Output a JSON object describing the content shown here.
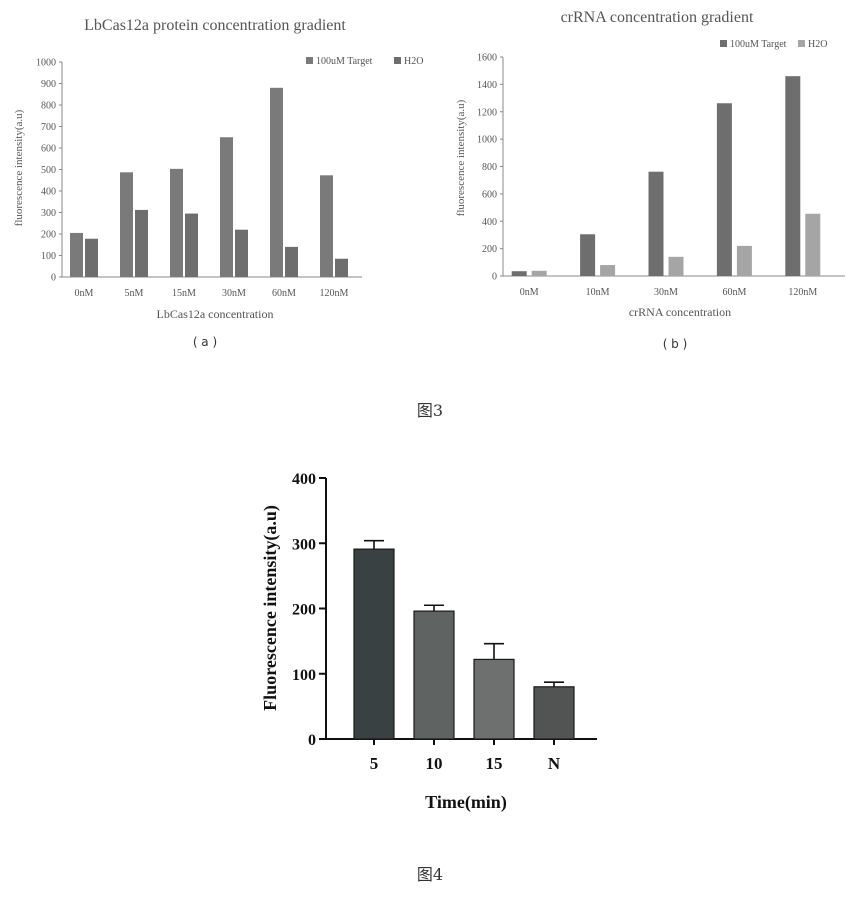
{
  "figure3": {
    "caption": "图3",
    "panel_a_label": "( a )",
    "panel_b_label": "( b )"
  },
  "figure4": {
    "caption": "图4"
  },
  "colors": {
    "dark_gray": "#6e6e6e",
    "mid_gray": "#7a7a7a",
    "light_gray": "#a5a5a5",
    "bar_5": "#3a4142",
    "bar_10": "#5f6362",
    "bar_15": "#6e706f",
    "bar_N": "#525454"
  },
  "chart_data": [
    {
      "type": "bar",
      "title": "LbCas12a  protein  concentration  gradient",
      "xlabel": "LbCas12a  concentration",
      "ylabel": "fluorescence  intensity(a.u)",
      "categories": [
        "0nM",
        "5nM",
        "15nM",
        "30nM",
        "60nM",
        "120nM"
      ],
      "ylim": [
        0,
        1000
      ],
      "yticks": [
        0,
        100,
        200,
        300,
        400,
        500,
        600,
        700,
        800,
        900,
        1000
      ],
      "legend_position": "top-right",
      "series": [
        {
          "name": "100uM Target",
          "values": [
            205,
            487,
            503,
            650,
            880,
            473
          ]
        },
        {
          "name": "H2O",
          "values": [
            178,
            312,
            295,
            220,
            140,
            85
          ]
        }
      ]
    },
    {
      "type": "bar",
      "title": "crRNA  concentration  gradient",
      "xlabel": "crRNA  concentration",
      "ylabel": "fluorescence  intensity(a.u)",
      "categories": [
        "0nM",
        "10nM",
        "30nM",
        "60nM",
        "120nM"
      ],
      "ylim": [
        0,
        1600
      ],
      "yticks": [
        0,
        200,
        400,
        600,
        800,
        1000,
        1200,
        1400,
        1600
      ],
      "legend_position": "top-right",
      "series": [
        {
          "name": "100uM Target",
          "values": [
            35,
            305,
            762,
            1262,
            1460
          ]
        },
        {
          "name": "H2O",
          "values": [
            38,
            80,
            140,
            220,
            455
          ]
        }
      ]
    },
    {
      "type": "bar",
      "title": "",
      "xlabel": "Time(min)",
      "ylabel": "Fluorescence intensity(a.u)",
      "categories": [
        "5",
        "10",
        "15",
        "N"
      ],
      "values": [
        291,
        196,
        122,
        80
      ],
      "error": [
        13,
        9,
        24,
        7
      ],
      "ylim": [
        0,
        400
      ],
      "yticks": [
        0,
        100,
        200,
        300,
        400
      ]
    }
  ]
}
